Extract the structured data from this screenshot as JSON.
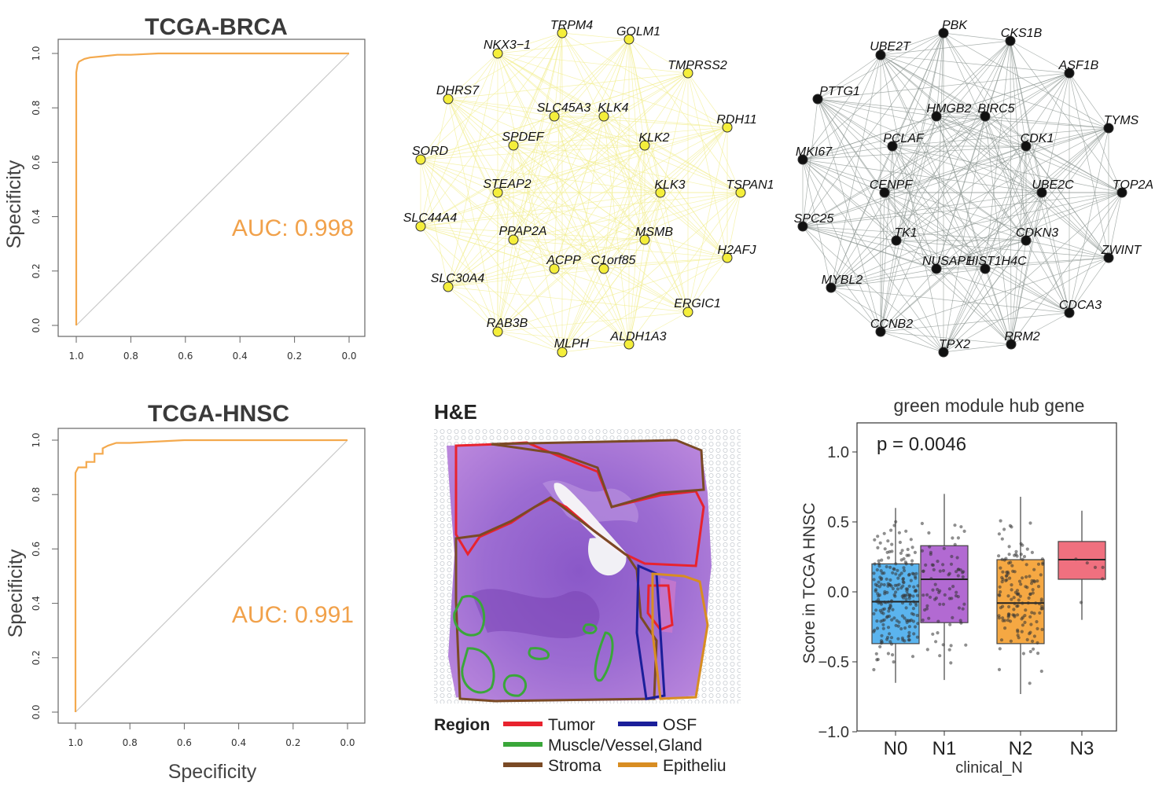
{
  "chart_data": [
    {
      "type": "line",
      "panel": "roc-brca",
      "title": "TCGA-BRCA",
      "ylabel": "Specificity",
      "xlabel": "",
      "xlim": [
        1.0,
        0.0
      ],
      "ylim": [
        0.0,
        1.0
      ],
      "x_ticks": [
        "1.0",
        "0.8",
        "0.6",
        "0.4",
        "0.2",
        "0.0"
      ],
      "y_ticks": [
        "0.0",
        "0.2",
        "0.4",
        "0.6",
        "0.8",
        "1.0"
      ],
      "annotation": "AUC: 0.998",
      "color": "#f4a94d",
      "diagonal_color": "#c8c8c8",
      "x": [
        1.0,
        1.0,
        0.995,
        0.99,
        0.97,
        0.95,
        0.9,
        0.85,
        0.8,
        0.7,
        0.5,
        0.3,
        0.0
      ],
      "y": [
        0.0,
        0.93,
        0.96,
        0.97,
        0.98,
        0.985,
        0.99,
        0.995,
        0.995,
        1.0,
        1.0,
        1.0,
        1.0
      ]
    },
    {
      "type": "line",
      "panel": "roc-hnsc",
      "title": "TCGA-HNSC",
      "ylabel": "Specificity",
      "xlabel": "Specificity",
      "xlim": [
        1.0,
        0.0
      ],
      "ylim": [
        0.0,
        1.0
      ],
      "x_ticks": [
        "1.0",
        "0.8",
        "0.6",
        "0.4",
        "0.2",
        "0.0"
      ],
      "y_ticks": [
        "0.0",
        "0.2",
        "0.4",
        "0.6",
        "0.8",
        "1.0"
      ],
      "annotation": "AUC: 0.991",
      "color": "#f4a94d",
      "diagonal_color": "#c8c8c8",
      "x": [
        1.0,
        1.0,
        0.99,
        0.96,
        0.96,
        0.93,
        0.93,
        0.9,
        0.9,
        0.88,
        0.85,
        0.8,
        0.6,
        0.4,
        0.2,
        0.0
      ],
      "y": [
        0.0,
        0.88,
        0.9,
        0.9,
        0.92,
        0.92,
        0.95,
        0.95,
        0.97,
        0.98,
        0.99,
        0.99,
        1.0,
        1.0,
        1.0,
        1.0
      ]
    },
    {
      "type": "box",
      "panel": "boxplot",
      "title": "green module hub gene",
      "ylabel": "Score in TCGA HNSC",
      "xlabel": "clinical_N",
      "annotation": "p = 0.0046",
      "categories": [
        "N0",
        "N1",
        "N2",
        "N3"
      ],
      "y_ticks": [
        "1.0",
        "0.5",
        "0.0",
        "−0.5",
        "−1.0"
      ],
      "ylim": [
        -1.0,
        1.1
      ],
      "colors": [
        "#5bb4ee",
        "#b26ad2",
        "#f5a843",
        "#f0707f"
      ],
      "boxes": [
        {
          "min": -0.65,
          "q1": -0.37,
          "median": -0.07,
          "q3": 0.2,
          "max": 0.6
        },
        {
          "min": -0.63,
          "q1": -0.22,
          "median": 0.09,
          "q3": 0.33,
          "max": 0.7
        },
        {
          "min": -0.73,
          "q1": -0.37,
          "median": -0.08,
          "q3": 0.23,
          "max": 0.68
        },
        {
          "min": -0.2,
          "q1": 0.09,
          "median": 0.23,
          "q3": 0.36,
          "max": 0.58
        }
      ]
    }
  ],
  "networks": {
    "yellow": {
      "node_color": "#f4ee3b",
      "edge_color": "#f1ed8f",
      "nodes": [
        "TRPM4",
        "GOLM1",
        "NKX3−1",
        "TMPRSS2",
        "DHRS7",
        "SLC45A3",
        "KLK4",
        "RDH11",
        "SPDEF",
        "KLK2",
        "SORD",
        "STEAP2",
        "KLK3",
        "TSPAN1",
        "SLC44A4",
        "PPAP2A",
        "MSMB",
        "H2AFJ",
        "ACPP",
        "C1orf85",
        "SLC30A4",
        "ERGIC1",
        "RAB3B",
        "ALDH1A3",
        "MLPH"
      ]
    },
    "black": {
      "node_color": "#111111",
      "edge_color": "#8e9793",
      "nodes": [
        "PBK",
        "CKS1B",
        "UBE2T",
        "ASF1B",
        "PTTG1",
        "HMGB2",
        "BIRC5",
        "TYMS",
        "PCLAF",
        "CDK1",
        "MKI67",
        "CENPF",
        "UBE2C",
        "TOP2A",
        "SPC25",
        "TK1",
        "CDKN3",
        "ZWINT",
        "NUSAP1",
        "HIST1H4C",
        "MYBL2",
        "CDCA3",
        "CCNB2",
        "RRM2",
        "TPX2"
      ]
    }
  },
  "histology": {
    "title": "H&E",
    "legend_title": "Region",
    "legend": [
      {
        "label": "Tumor",
        "color": "#e8232e"
      },
      {
        "label": "OSF",
        "color": "#1b1f9a"
      },
      {
        "label": "Muscle/Vessel,Gland",
        "color": "#3aa63a"
      },
      {
        "label": "Stroma",
        "color": "#7a4a25"
      },
      {
        "label": "Epitheliu",
        "color": "#d88d22"
      }
    ]
  }
}
